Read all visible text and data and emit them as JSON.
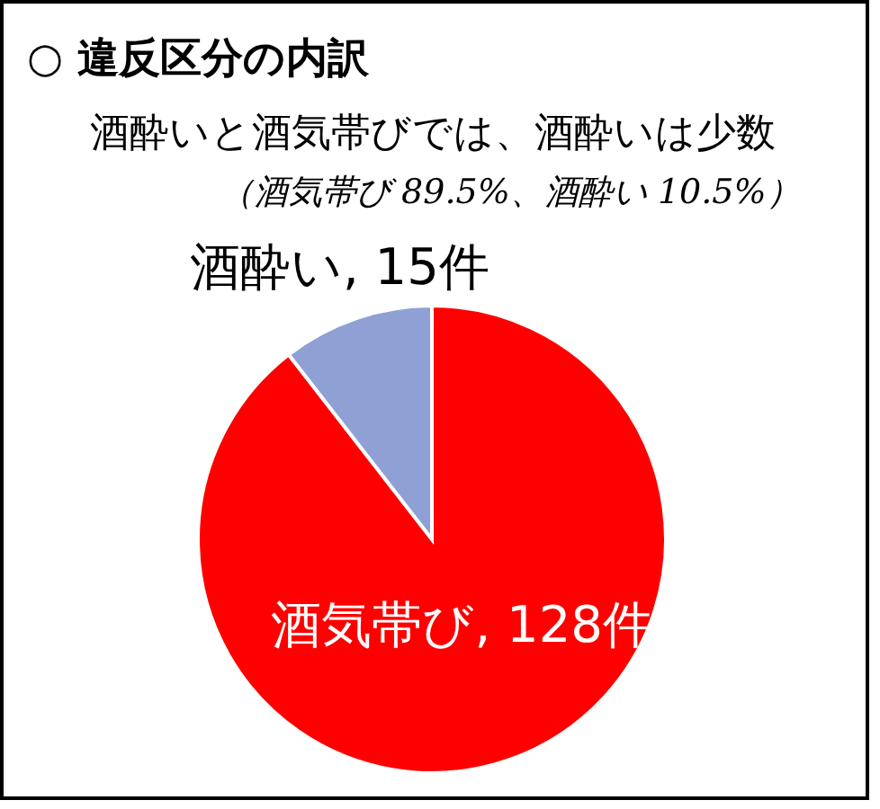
{
  "chart_data": {
    "type": "pie",
    "title": "○ 違反区分の内訳",
    "subtitle": "酒酔いと酒気帯びでは、酒酔いは少数",
    "annotations": [
      "（酒気帯び 89.5%、酒酔い 10.5%）"
    ],
    "categories": [
      "酒気帯び",
      "酒酔い"
    ],
    "values": [
      128,
      15
    ],
    "colors": [
      "#ff0000",
      "#8fa1d4"
    ],
    "value_labels": [
      "128件",
      "15件"
    ]
  }
}
